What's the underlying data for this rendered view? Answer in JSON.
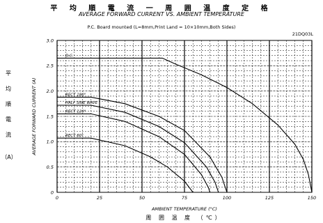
{
  "header": {
    "title_jp": "平 均 順 電 流 一 周 囲 温 度 定 格",
    "title_en": "AVERAGE FORWARD CURRENT VS. AMBIENT TEMPERATURE",
    "subtitle": "P.C. Board mounted (L=8mm,Print Land = 10×10mm,Both Sides)",
    "part_number": "21DQ03L"
  },
  "ylabel_jp": [
    "平",
    "均",
    "順",
    "電",
    "流",
    "（A）"
  ],
  "xlabel_jp": "周 囲 温 度 （℃）",
  "chart_data": {
    "type": "line",
    "xlabel": "AMBIENT TEMPERATURE (°C)",
    "ylabel": "AVERAGE FORWARD CURRENT (A)",
    "xlim": [
      0,
      150
    ],
    "ylim": [
      0,
      3.0
    ],
    "grid": true,
    "x_ticks": [
      0,
      25,
      50,
      75,
      100,
      125,
      150
    ],
    "y_ticks": [
      0,
      0.5,
      1.0,
      1.5,
      2.0,
      2.5,
      3.0
    ],
    "x_tick_labels": [
      "0",
      "25",
      "50",
      "75",
      "100",
      "125",
      "150"
    ],
    "y_tick_labels": [
      "0",
      "0.5",
      "1.0",
      "1.5",
      "2.0",
      "2.5",
      "3.0"
    ],
    "series": [
      {
        "name": "D.C.",
        "x": [
          0,
          62,
          70,
          85,
          100,
          115,
          130,
          140,
          145,
          148,
          150
        ],
        "y": [
          2.65,
          2.65,
          2.53,
          2.32,
          2.07,
          1.75,
          1.33,
          0.95,
          0.65,
          0.35,
          0
        ]
      },
      {
        "name": "RECT 180°",
        "x": [
          0,
          20,
          40,
          60,
          75,
          90,
          97,
          100
        ],
        "y": [
          1.88,
          1.88,
          1.75,
          1.5,
          1.22,
          0.7,
          0.3,
          0
        ]
      },
      {
        "name": "HALF SINE WAVE",
        "x": [
          0,
          20,
          40,
          60,
          75,
          88,
          93,
          95
        ],
        "y": [
          1.72,
          1.72,
          1.58,
          1.3,
          0.98,
          0.5,
          0.2,
          0
        ]
      },
      {
        "name": "RECT 120°",
        "x": [
          0,
          20,
          40,
          60,
          75,
          85,
          89,
          90
        ],
        "y": [
          1.55,
          1.55,
          1.4,
          1.1,
          0.75,
          0.35,
          0.1,
          0
        ]
      },
      {
        "name": "RECT 60°",
        "x": [
          0,
          20,
          40,
          55,
          65,
          75,
          80
        ],
        "y": [
          1.07,
          1.07,
          0.92,
          0.7,
          0.5,
          0.22,
          0
        ]
      }
    ]
  }
}
